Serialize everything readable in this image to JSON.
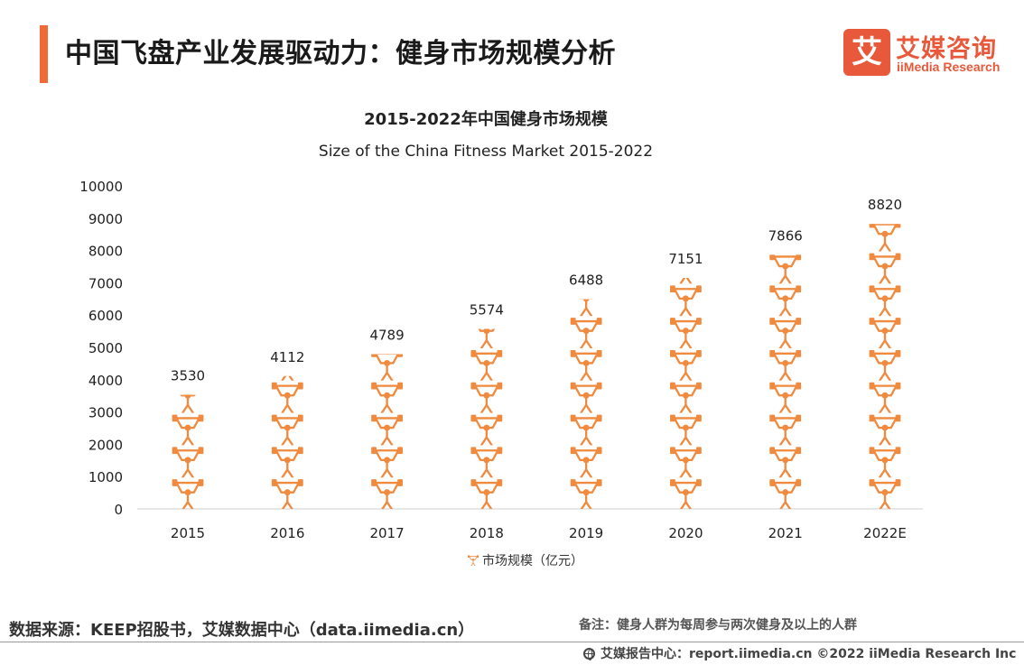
{
  "header": {
    "title": "中国飞盘产业发展驱动力：健身市场规模分析",
    "logo_mark": "艾",
    "logo_cn": "艾媒咨询",
    "logo_en": "iiMedia Research",
    "accent_color": "#ef6a37"
  },
  "chart_data": {
    "type": "bar",
    "title": "2015-2022年中国健身市场规模",
    "subtitle": "Size of the China Fitness Market 2015-2022",
    "categories": [
      "2015",
      "2016",
      "2017",
      "2018",
      "2019",
      "2020",
      "2021",
      "2022E"
    ],
    "series": [
      {
        "name": "市场规模（亿元）",
        "values": [
          3530,
          4112,
          4789,
          5574,
          6488,
          7151,
          7866,
          8820
        ]
      }
    ],
    "data_labels": [
      "3530",
      "4112",
      "4789",
      "5574",
      "6488",
      "7151",
      "7866",
      "8820"
    ],
    "ylim": [
      0,
      10000
    ],
    "yticks": [
      "0",
      "1000",
      "2000",
      "3000",
      "4000",
      "5000",
      "6000",
      "7000",
      "8000",
      "9000",
      "10000"
    ],
    "xlabel": "",
    "ylabel": "",
    "grid": false,
    "legend": "bottom",
    "bar_style": "pictograph weightlifter icons",
    "color": "#ef8a3f"
  },
  "footer": {
    "source": "数据来源：KEEP招股书，艾媒数据中心（data.iimedia.cn）",
    "note": "备注：健身人群为每周参与两次健身及以上的人群",
    "copyright": "艾媒报告中心：report.iimedia.cn   ©2022  iiMedia Research  Inc",
    "globe_icon": "globe-icon"
  }
}
